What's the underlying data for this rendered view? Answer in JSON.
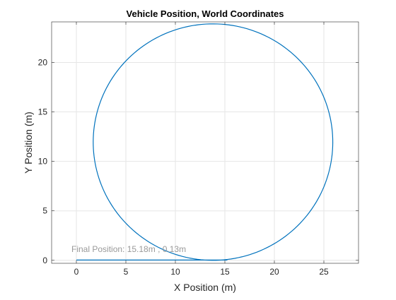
{
  "chart_data": {
    "type": "line",
    "title": "Vehicle Position, World Coordinates",
    "xlabel": "X Position (m)",
    "ylabel": "Y Position (m)",
    "xlim": [
      -2.5,
      28.5
    ],
    "ylim": [
      -0.3,
      24.1
    ],
    "xticks": [
      0,
      5,
      10,
      15,
      20,
      25
    ],
    "yticks": [
      0,
      5,
      10,
      15,
      20
    ],
    "grid": true,
    "series_color": "#0072BD",
    "path": {
      "straight_segment": {
        "x_start": 0,
        "x_end": 15.2,
        "y": 0.03
      },
      "circle": {
        "center_x": 13.8,
        "center_y": 11.95,
        "radius_x": 12.1,
        "radius_y": 11.95
      }
    },
    "annotation": {
      "text": "Final Position: 15.18m , 0.13m",
      "x": -0.5,
      "y": 0.85,
      "color": "#999999"
    }
  }
}
